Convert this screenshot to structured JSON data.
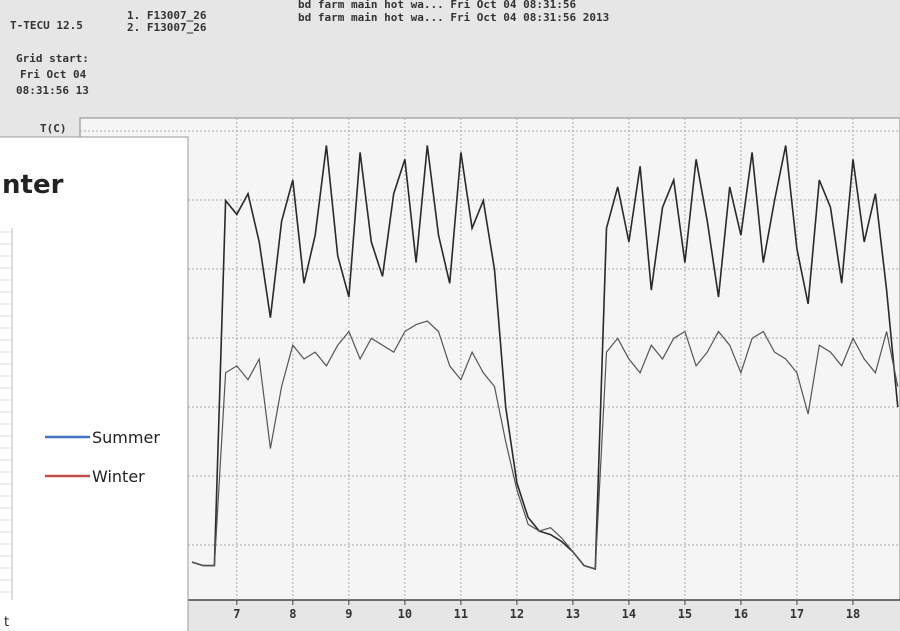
{
  "header": {
    "device": "T-TECU 12.5",
    "channels": [
      "1. F13007_26",
      "2. F13007_26"
    ],
    "rows": [
      "bd farm main hot wa... Fri Oct 04 08:31:56",
      "bd farm main hot wa... Fri Oct 04 08:31:56 2013"
    ],
    "grid_start": [
      "Grid start:",
      "Fri Oct 04",
      "08:31:56 13"
    ],
    "y_unit": "T(C)"
  },
  "chart_data": {
    "type": "line",
    "x": [
      6.2,
      6.4,
      6.6,
      6.8,
      7.0,
      7.2,
      7.4,
      7.6,
      7.8,
      8.0,
      8.2,
      8.4,
      8.6,
      8.8,
      9.0,
      9.2,
      9.4,
      9.6,
      9.8,
      10.0,
      10.2,
      10.4,
      10.6,
      10.8,
      11.0,
      11.2,
      11.4,
      11.6,
      11.8,
      12.0,
      12.2,
      12.4,
      12.6,
      12.8,
      13.0,
      13.2,
      13.4,
      13.6,
      13.8,
      14.0,
      14.2,
      14.4,
      14.6,
      14.8,
      15.0,
      15.2,
      15.4,
      15.6,
      15.8,
      16.0,
      16.2,
      16.4,
      16.6,
      16.8,
      17.0,
      17.2,
      17.4,
      17.6,
      17.8,
      18.0,
      18.2,
      18.4,
      18.6,
      18.8
    ],
    "series": [
      {
        "color": "#2a2a2a",
        "values": [
          0.55,
          0.5,
          0.5,
          5.8,
          5.6,
          5.9,
          5.2,
          4.1,
          5.5,
          6.1,
          4.6,
          5.3,
          6.6,
          5.0,
          4.4,
          6.5,
          5.2,
          4.7,
          5.9,
          6.4,
          4.9,
          6.6,
          5.3,
          4.6,
          6.5,
          5.4,
          5.8,
          4.8,
          2.8,
          1.7,
          1.2,
          1.0,
          0.95,
          0.85,
          0.7,
          0.5,
          0.45,
          5.4,
          6.0,
          5.2,
          6.3,
          4.5,
          5.7,
          6.1,
          4.9,
          6.4,
          5.5,
          4.4,
          6.0,
          5.3,
          6.5,
          4.9,
          5.8,
          6.6,
          5.1,
          4.3,
          6.1,
          5.7,
          4.6,
          6.4,
          5.2,
          5.9,
          4.5,
          2.8
        ]
      },
      {
        "color": "#555555",
        "values": [
          0.55,
          0.5,
          0.5,
          3.3,
          3.4,
          3.2,
          3.5,
          2.2,
          3.1,
          3.7,
          3.5,
          3.6,
          3.4,
          3.7,
          3.9,
          3.5,
          3.8,
          3.7,
          3.6,
          3.9,
          4.0,
          4.05,
          3.9,
          3.4,
          3.2,
          3.6,
          3.3,
          3.1,
          2.3,
          1.6,
          1.1,
          1.0,
          1.05,
          0.9,
          0.7,
          0.5,
          0.45,
          3.6,
          3.8,
          3.5,
          3.3,
          3.7,
          3.5,
          3.8,
          3.9,
          3.4,
          3.6,
          3.9,
          3.7,
          3.3,
          3.8,
          3.9,
          3.6,
          3.5,
          3.3,
          2.7,
          3.7,
          3.6,
          3.4,
          3.8,
          3.5,
          3.3,
          3.9,
          3.1
        ]
      }
    ],
    "xlim": [
      4.2,
      18.84
    ],
    "ylim": [
      0,
      7
    ],
    "xticks": [
      7,
      8,
      9,
      10,
      11,
      12,
      13,
      14,
      15,
      16,
      17,
      18
    ],
    "grid": true
  },
  "overlay_chart": {
    "title": "nter",
    "legend": [
      {
        "name": "Summer",
        "color": "#4472c4"
      },
      {
        "name": "Winter",
        "color": "#c0504d"
      }
    ],
    "axis_fragment": "t"
  }
}
